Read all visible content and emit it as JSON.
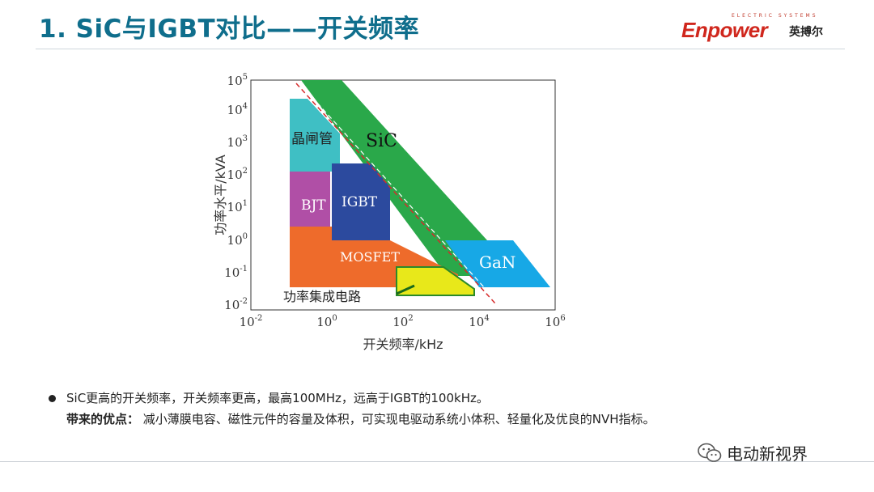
{
  "slide": {
    "title": "1. SiC与IGBT对比——开关频率"
  },
  "logo": {
    "tagline": "ELECTRIC SYSTEMS",
    "wordmark": "Enpower",
    "cn_name": "英搏尔",
    "brand_color": "#d0271d"
  },
  "chart_data": {
    "type": "diagram",
    "xlabel": "开关频率/kHz",
    "ylabel": "功率水平/kVA",
    "x_ticks": [
      {
        "base": "10",
        "exp": "-2"
      },
      {
        "base": "10",
        "exp": "0"
      },
      {
        "base": "10",
        "exp": "2"
      },
      {
        "base": "10",
        "exp": "4"
      },
      {
        "base": "10",
        "exp": "6"
      }
    ],
    "y_ticks": [
      {
        "base": "10",
        "exp": "-2"
      },
      {
        "base": "10",
        "exp": "-1"
      },
      {
        "base": "10",
        "exp": "0"
      },
      {
        "base": "10",
        "exp": "1"
      },
      {
        "base": "10",
        "exp": "2"
      },
      {
        "base": "10",
        "exp": "3"
      },
      {
        "base": "10",
        "exp": "4"
      },
      {
        "base": "10",
        "exp": "5"
      }
    ],
    "x_log_range": [
      -2,
      6
    ],
    "y_log_range": [
      -2,
      5
    ],
    "regions": [
      {
        "name": "晶闸管",
        "color": "#3fbfc4"
      },
      {
        "name": "BJT",
        "color": "#b04fa6"
      },
      {
        "name": "IGBT",
        "color": "#2c4a9e"
      },
      {
        "name": "MOSFET",
        "color": "#ee6b2b"
      },
      {
        "name": "SiC",
        "color": "#2aa84a"
      },
      {
        "name": "GaN",
        "color": "#17a8e6"
      },
      {
        "name": "功率集成电路",
        "color": "#e8e81a"
      }
    ]
  },
  "bullets": {
    "line1": "SiC更高的开关频率，开关频率更高，最高100MHz，远高于IGBT的100kHz。",
    "line2_lead": "带来的优点：",
    "line2_text": "减小薄膜电容、磁性元件的容量及体积，可实现电驱动系统小体积、轻量化及优良的NVH指标。"
  },
  "watermark": {
    "label": "电动新视界",
    "icon": "wechat-icon"
  }
}
